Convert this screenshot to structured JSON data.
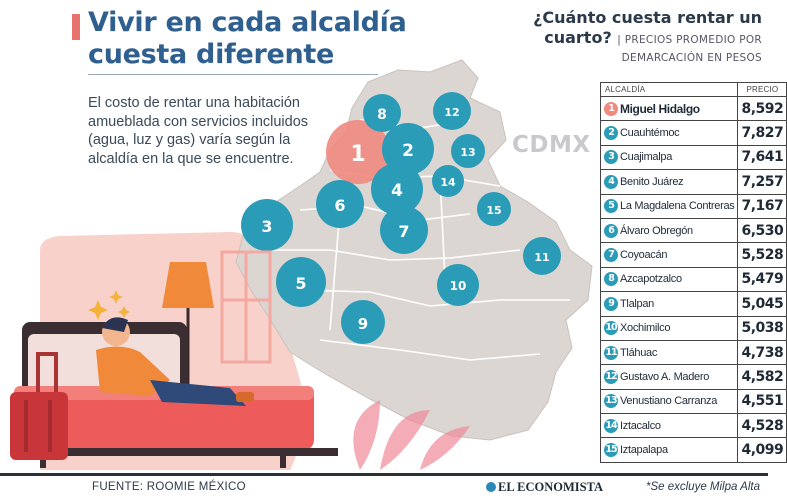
{
  "title": {
    "line1": "Vivir en cada alcaldía",
    "line2": "cuesta diferente"
  },
  "intro": "El costo de rentar una habitación amueblada con servicios incluidos (agua, luz y gas) varía según la alcaldía en la que se encuentre.",
  "question": {
    "line1": "¿Cuánto cuesta rentar un",
    "line2": "cuarto?",
    "subtitle_part1": "| PRECIOS PROMEDIO POR",
    "subtitle_part2": "DEMARCACIÓN EN PESOS"
  },
  "map": {
    "label": "CDMX",
    "markers": [
      "1",
      "2",
      "3",
      "4",
      "5",
      "6",
      "7",
      "8",
      "9",
      "10",
      "11",
      "12",
      "13",
      "14",
      "15"
    ],
    "colors": {
      "marker": "#2a9cb8",
      "highlight": "#ef8a80",
      "land": "#dcd6d3",
      "land_stroke": "#ffffff"
    }
  },
  "table": {
    "header_name": "ALCALDÍA",
    "header_price": "PRECIO",
    "rows": [
      {
        "n": "1",
        "name": "Miguel Hidalgo",
        "price": "8,592"
      },
      {
        "n": "2",
        "name": "Cuauhtémoc",
        "price": "7,827"
      },
      {
        "n": "3",
        "name": "Cuajimalpa",
        "price": "7,641"
      },
      {
        "n": "4",
        "name": "Benito Juárez",
        "price": "7,257"
      },
      {
        "n": "5",
        "name": "La Magdalena Contreras",
        "price": "7,167"
      },
      {
        "n": "6",
        "name": "Álvaro Obregón",
        "price": "6,530"
      },
      {
        "n": "7",
        "name": "Coyoacán",
        "price": "5,528"
      },
      {
        "n": "8",
        "name": "Azcapotzalco",
        "price": "5,479"
      },
      {
        "n": "9",
        "name": "Tlalpan",
        "price": "5,045"
      },
      {
        "n": "10",
        "name": "Xochimilco",
        "price": "5,038"
      },
      {
        "n": "11",
        "name": "Tláhuac",
        "price": "4,738"
      },
      {
        "n": "12",
        "name": "Gustavo A. Madero",
        "price": "4,582"
      },
      {
        "n": "13",
        "name": "Venustiano Carranza",
        "price": "4,551"
      },
      {
        "n": "14",
        "name": "Iztacalco",
        "price": "4,528"
      },
      {
        "n": "15",
        "name": "Iztapalapa",
        "price": "4,099"
      }
    ]
  },
  "footer": {
    "source": "FUENTE: ROOMIE MÉXICO",
    "brand": "EL ECONOMISTA",
    "note": "*Se excluye Milpa Alta"
  }
}
